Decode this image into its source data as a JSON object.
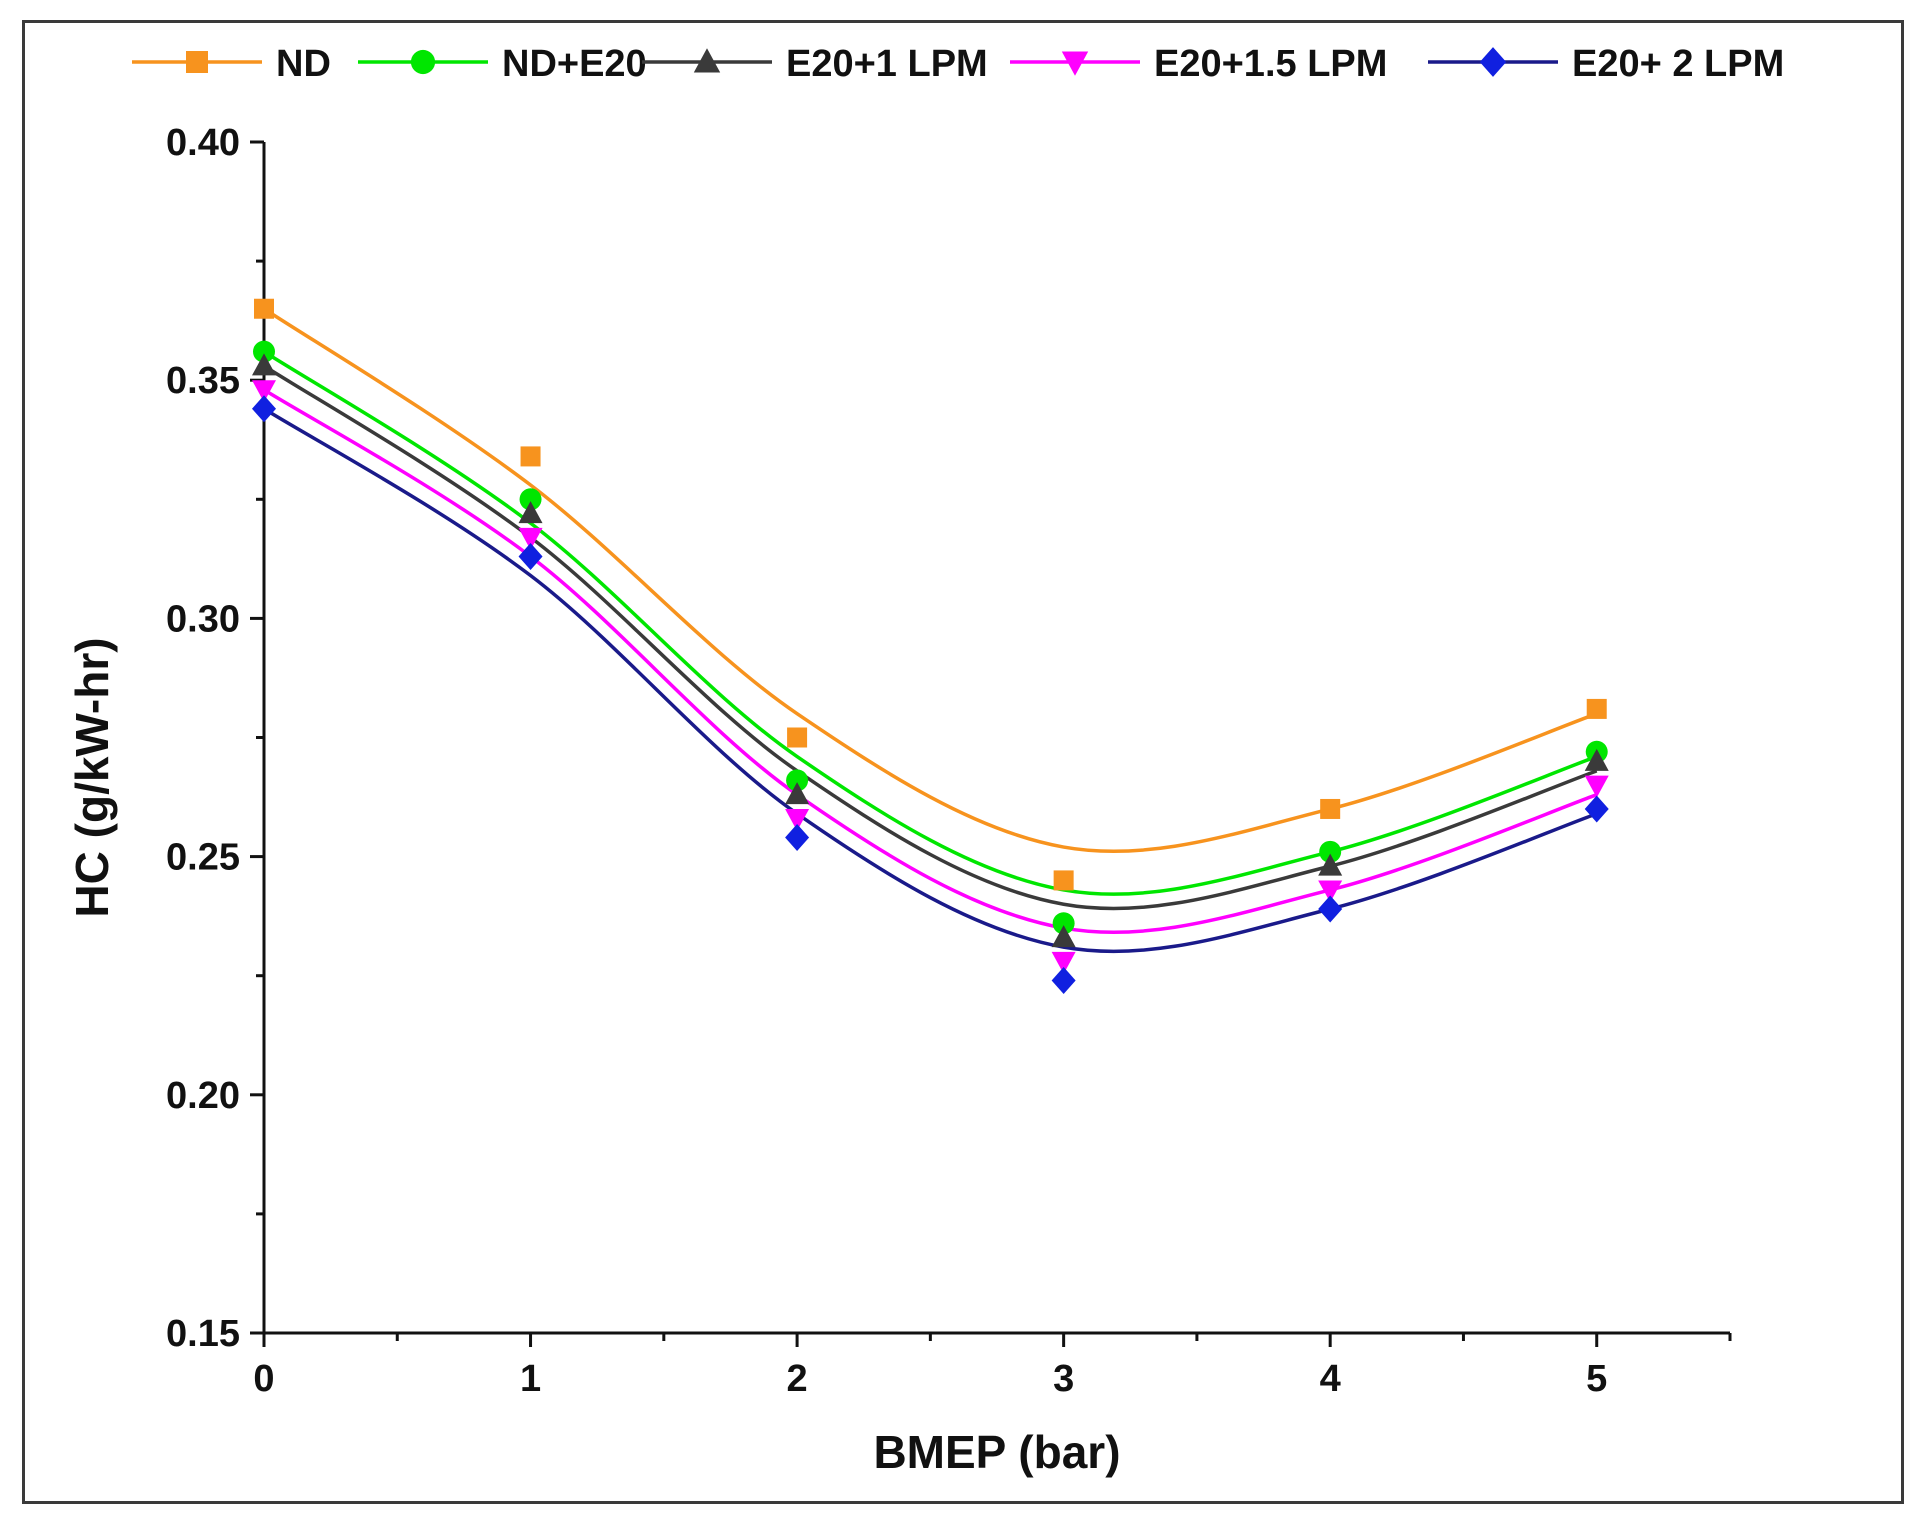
{
  "chart_data": {
    "type": "line",
    "title": "",
    "xlabel": "BMEP (bar)",
    "ylabel": "HC (g/kW-hr)",
    "xlim": [
      0,
      5.5
    ],
    "ylim": [
      0.15,
      0.4
    ],
    "x_ticks": [
      "0",
      "1",
      "2",
      "3",
      "4",
      "5"
    ],
    "y_ticks": [
      "0.15",
      "0.20",
      "0.25",
      "0.30",
      "0.35",
      "0.40"
    ],
    "grid": false,
    "legend_position": "top",
    "x": [
      0,
      1,
      2,
      3,
      4,
      5
    ],
    "series": [
      {
        "name": "ND",
        "marker": "square",
        "color": "#F7931E",
        "values": [
          0.365,
          0.334,
          0.275,
          0.245,
          0.26,
          0.281
        ],
        "fit": [
          0.365,
          0.328,
          0.28,
          0.252,
          0.26,
          0.28
        ]
      },
      {
        "name": "ND+E20",
        "marker": "circle",
        "color": "#00E600",
        "values": [
          0.356,
          0.325,
          0.266,
          0.236,
          0.251,
          0.272
        ],
        "fit": [
          0.356,
          0.32,
          0.271,
          0.243,
          0.251,
          0.271
        ]
      },
      {
        "name": "E20+1 LPM",
        "marker": "triangle-up",
        "color": "#3a3a3a",
        "values": [
          0.353,
          0.322,
          0.263,
          0.233,
          0.248,
          0.27
        ],
        "fit": [
          0.353,
          0.317,
          0.268,
          0.24,
          0.248,
          0.268
        ]
      },
      {
        "name": "E20+1.5 LPM",
        "marker": "triangle-down",
        "color": "#FF00FF",
        "values": [
          0.348,
          0.317,
          0.258,
          0.228,
          0.243,
          0.265
        ],
        "fit": [
          0.348,
          0.313,
          0.263,
          0.235,
          0.243,
          0.263
        ]
      },
      {
        "name": "E20+ 2 LPM",
        "marker": "diamond",
        "color": "#1020E0",
        "line_color": "#1A1A8A",
        "values": [
          0.344,
          0.313,
          0.254,
          0.224,
          0.239,
          0.26
        ],
        "fit": [
          0.344,
          0.309,
          0.259,
          0.231,
          0.239,
          0.259
        ]
      }
    ]
  }
}
